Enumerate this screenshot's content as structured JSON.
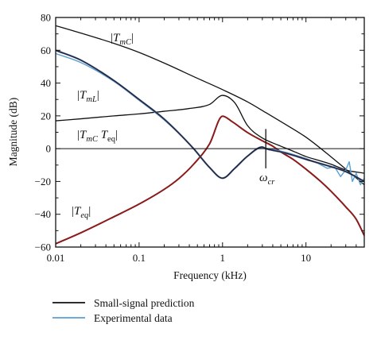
{
  "chart_data": {
    "type": "line",
    "title": "",
    "xlabel": "Frequency (kHz)",
    "ylabel": "Magnitude (dB)",
    "x_scale": "log",
    "xlim": [
      0.01,
      50
    ],
    "ylim": [
      -60,
      80
    ],
    "x_ticks": [
      0.01,
      0.1,
      1,
      10
    ],
    "x_tick_labels": [
      "0.01",
      "0.1",
      "1",
      "10"
    ],
    "y_ticks": [
      80,
      60,
      40,
      20,
      0,
      -20,
      -40,
      -60
    ],
    "y_tick_labels": [
      "80",
      "60",
      "40",
      "20",
      "0",
      "−20",
      "−40",
      "−60"
    ],
    "grid": false,
    "legend": {
      "placement": "bottom-left",
      "entries": [
        {
          "label": "Small-signal prediction",
          "color": "#111111"
        },
        {
          "label": "Experimental data",
          "color": "#5a9fd4"
        }
      ]
    },
    "colors": {
      "prediction": "#111111",
      "experimental": "#5a9fd4",
      "teq_highlight": "#8b1a1a",
      "loop_highlight": "#4a5a8a"
    },
    "annotations": [
      {
        "id": "tmc",
        "base": "|T",
        "sub": "mC",
        "tail": "|"
      },
      {
        "id": "tml",
        "base": "|T",
        "sub": "mL",
        "tail": "|"
      },
      {
        "id": "loop",
        "base": "|T",
        "sub": "mC",
        "mid": " T",
        "sub2": "eq",
        "tail": "|"
      },
      {
        "id": "teq",
        "base": "|T",
        "sub": "eq",
        "tail": "|"
      },
      {
        "id": "wcr",
        "base": "ω",
        "sub": "cr",
        "tail": ""
      }
    ],
    "crossover_marker_x": 3.3,
    "series": [
      {
        "id": "T_mC",
        "x": [
          0.01,
          0.02,
          0.05,
          0.1,
          0.2,
          0.5,
          1,
          2,
          3.3,
          5,
          10,
          20,
          50
        ],
        "y": [
          75,
          70.5,
          64.2,
          58.7,
          52.2,
          42.9,
          36,
          28.5,
          22,
          16.5,
          7,
          -5,
          -22
        ]
      },
      {
        "id": "T_mL",
        "x": [
          0.01,
          0.02,
          0.05,
          0.1,
          0.2,
          0.4,
          0.7,
          1,
          1.4,
          2,
          3,
          4,
          5,
          7,
          10,
          15,
          20,
          30,
          50
        ],
        "y": [
          17,
          18.2,
          20,
          21.2,
          22.8,
          24.5,
          27,
          32.5,
          28,
          14,
          6.5,
          3.5,
          1.5,
          -1.5,
          -4.8,
          -7.5,
          -9.5,
          -13,
          -15
        ]
      },
      {
        "id": "T_mC_T_eq",
        "x": [
          0.01,
          0.02,
          0.05,
          0.1,
          0.2,
          0.45,
          0.7,
          1,
          1.4,
          2,
          3,
          3.3,
          4,
          5,
          7,
          10,
          20,
          30,
          50
        ],
        "y": [
          60,
          54,
          41.5,
          30,
          18,
          0,
          -11.5,
          -18,
          -12,
          -4.5,
          1,
          0,
          -1,
          -2,
          -4,
          -6.5,
          -11,
          -14,
          -20
        ]
      },
      {
        "id": "T_eq",
        "x": [
          0.01,
          0.02,
          0.05,
          0.1,
          0.2,
          0.3,
          0.45,
          0.7,
          1,
          1.3,
          2,
          3,
          4,
          5,
          7,
          10,
          15,
          20,
          30,
          40,
          50
        ],
        "y": [
          -58,
          -51.3,
          -41.5,
          -33.8,
          -24.8,
          -18.2,
          -9.5,
          3,
          19.8,
          16.5,
          9.8,
          4.8,
          1.5,
          -2,
          -6.5,
          -12.5,
          -20,
          -26,
          -35.5,
          -43,
          -53
        ]
      },
      {
        "id": "experimental",
        "x": [
          0.01,
          0.02,
          0.05,
          0.1,
          0.2,
          0.45,
          0.7,
          1,
          1.4,
          2,
          3,
          4,
          5,
          7,
          10,
          14,
          18,
          22,
          26,
          30,
          33,
          36,
          40,
          45,
          50
        ],
        "y": [
          58,
          52.5,
          41,
          29.5,
          17.5,
          0,
          -11.5,
          -18,
          -12,
          -4.5,
          0.5,
          -0.5,
          -1.5,
          -3.5,
          -6,
          -9,
          -12,
          -11,
          -17,
          -13,
          -8,
          -20,
          -15,
          -22,
          -18
        ]
      }
    ]
  }
}
